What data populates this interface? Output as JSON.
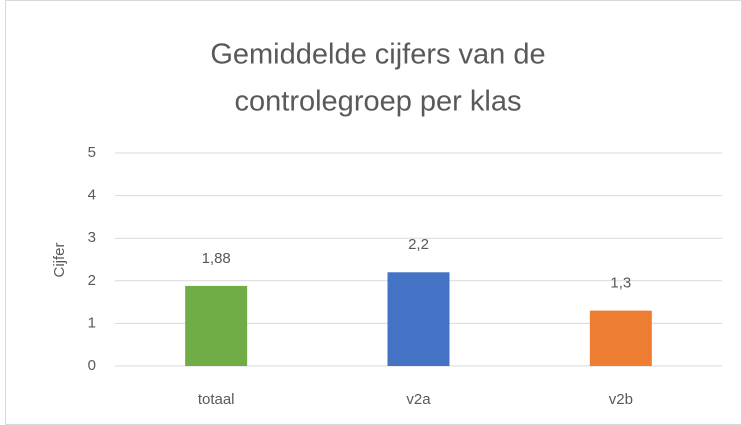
{
  "chart_data": {
    "type": "bar",
    "title": [
      "Gemiddelde cijfers van de",
      "controlegroep per klas"
    ],
    "y_label": "Cijfer",
    "categories": [
      "totaal",
      "v2a",
      "v2b"
    ],
    "values": [
      1.88,
      2.2,
      1.3
    ],
    "value_labels": [
      "1,88",
      "2,2",
      "1,3"
    ],
    "colors": [
      "#70ad47",
      "#4472c4",
      "#ed7d31"
    ],
    "ylim": [
      0,
      5
    ],
    "yticks": [
      0,
      1,
      2,
      3,
      4,
      5
    ],
    "grid": true
  }
}
